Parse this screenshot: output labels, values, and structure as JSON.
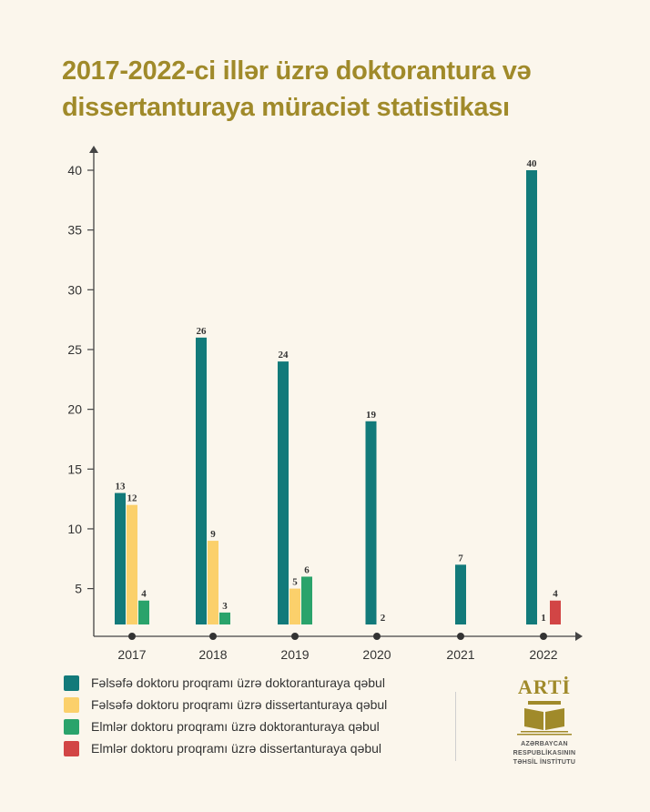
{
  "title": "2017-2022-ci illər üzrə doktorantura və dissertanturaya müraciət statistikası",
  "chart_data": {
    "type": "bar",
    "categories": [
      "2017",
      "2018",
      "2019",
      "2020",
      "2021",
      "2022"
    ],
    "ylim": [
      2,
      42
    ],
    "yticks": [
      5,
      10,
      15,
      20,
      25,
      30,
      35,
      40
    ],
    "grid": false,
    "legend_position": "bottom-left",
    "series": [
      {
        "name": "Fəlsəfə doktoru proqramı üzrə doktoranturaya qəbul",
        "color": "#127a7a",
        "values": [
          13,
          26,
          24,
          19,
          7,
          40
        ]
      },
      {
        "name": "Fəlsəfə doktoru proqramı üzrə dissertanturaya qəbul",
        "color": "#fbd06b",
        "values": [
          12,
          9,
          5,
          null,
          null,
          null
        ]
      },
      {
        "name": "Elmlər doktoru proqramı üzrə doktoranturaya qəbul",
        "color": "#2aa36b",
        "values": [
          4,
          3,
          6,
          2,
          null,
          1
        ]
      },
      {
        "name": "Elmlər doktoru proqramı üzrə dissertanturaya qəbul",
        "color": "#d24545",
        "values": [
          null,
          null,
          null,
          null,
          null,
          4
        ]
      }
    ]
  },
  "logo": {
    "word": "ARTİ",
    "caption_line1": "AZƏRBAYCAN RESPUBLİKASININ",
    "caption_line2": "TƏHSİL İNSTİTUTU"
  }
}
